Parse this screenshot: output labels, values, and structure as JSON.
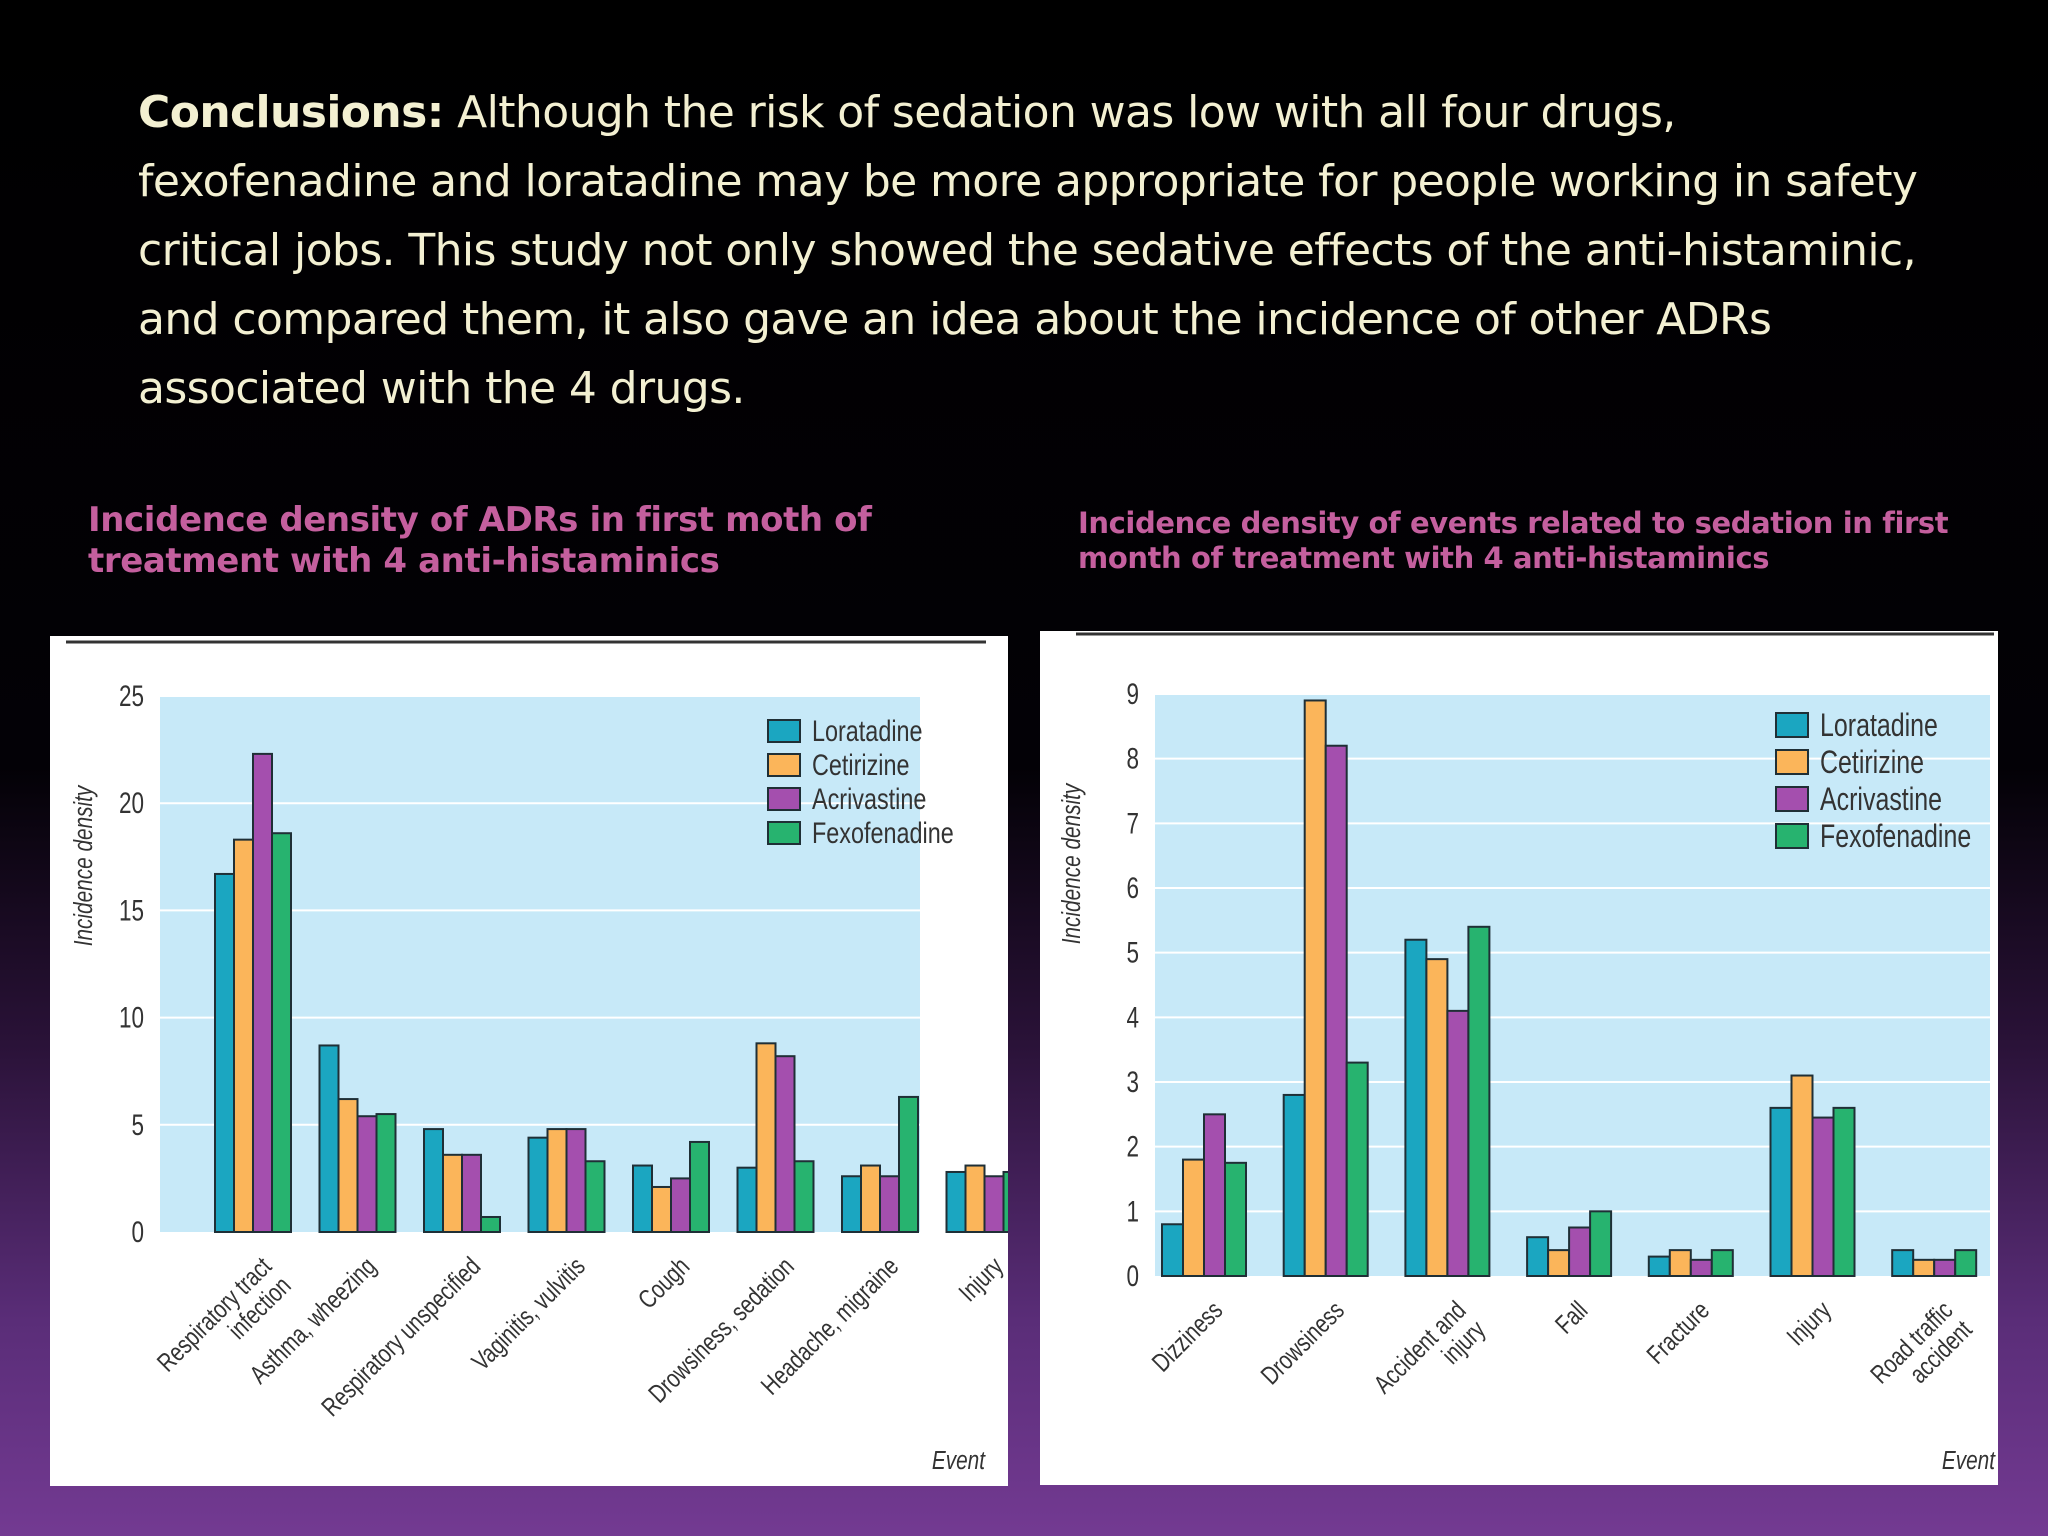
{
  "conclusions": {
    "lead": "Conclusions:",
    "body": " Although the risk of sedation was low with all four drugs, fexofenadine and loratadine may be more appropriate for people working in safety critical jobs. This study not only showed the sedative effects of the anti-histaminic, and compared them, it also gave an idea about the incidence of other ADRs associated with the 4 drugs."
  },
  "captions": {
    "left": "Incidence density of ADRs in first moth of treatment with  4 anti-histaminics",
    "right": "Incidence density of events related to sedation in first month of treatment with 4 anti-histaminics"
  },
  "colors": {
    "plot_bg": "#c7e9f8",
    "grid": "#ffffff",
    "title_color": "#c45f9e",
    "text_color": "#f3f0d2"
  },
  "chart_data": [
    {
      "type": "bar",
      "ylabel": "Incidence density",
      "xlabel": "Event",
      "ylim": [
        0,
        25
      ],
      "yticks": [
        0,
        5,
        10,
        15,
        20,
        25
      ],
      "grid": true,
      "legend_position": "top-right",
      "categories": [
        [
          "Respiratory tract",
          "infection"
        ],
        [
          "Asthma, wheezing"
        ],
        [
          "Respiratory unspecified"
        ],
        [
          "Vaginitis, vulvitis"
        ],
        [
          "Cough"
        ],
        [
          "Drowsiness, sedation"
        ],
        [
          "Headache, migraine"
        ],
        [
          "Injury"
        ]
      ],
      "series": [
        {
          "name": "Loratadine",
          "color": "#1ba6c1",
          "values": [
            16.7,
            8.7,
            4.8,
            4.4,
            3.1,
            3.0,
            2.6,
            2.8
          ]
        },
        {
          "name": "Cetirizine",
          "color": "#fbb55a",
          "values": [
            18.3,
            6.2,
            3.6,
            4.8,
            2.1,
            8.8,
            3.1,
            3.1
          ]
        },
        {
          "name": "Acrivastine",
          "color": "#a44fae",
          "values": [
            22.3,
            5.4,
            3.6,
            4.8,
            2.5,
            8.2,
            2.6,
            2.6
          ]
        },
        {
          "name": "Fexofenadine",
          "color": "#27b36f",
          "values": [
            18.6,
            5.5,
            0.7,
            3.3,
            4.2,
            3.3,
            6.3,
            2.8
          ]
        }
      ]
    },
    {
      "type": "bar",
      "ylabel": "Incidence density",
      "xlabel": "Event",
      "ylim": [
        0,
        9
      ],
      "yticks": [
        0,
        1,
        2,
        3,
        4,
        5,
        6,
        7,
        8,
        9
      ],
      "grid": true,
      "legend_position": "top-right",
      "categories": [
        [
          "Dizziness"
        ],
        [
          "Drowsiness"
        ],
        [
          "Accident and",
          "injury"
        ],
        [
          "Fall"
        ],
        [
          "Fracture"
        ],
        [
          "Injury"
        ],
        [
          "Road traffic",
          "accident"
        ]
      ],
      "series": [
        {
          "name": "Loratadine",
          "color": "#1ba6c1",
          "values": [
            0.8,
            2.8,
            5.2,
            0.6,
            0.3,
            2.6,
            0.4
          ]
        },
        {
          "name": "Cetirizine",
          "color": "#fbb55a",
          "values": [
            1.8,
            8.9,
            4.9,
            0.4,
            0.4,
            3.1,
            0.25
          ]
        },
        {
          "name": "Acrivastine",
          "color": "#a44fae",
          "values": [
            2.5,
            8.2,
            4.1,
            0.75,
            0.25,
            2.45,
            0.25
          ]
        },
        {
          "name": "Fexofenadine",
          "color": "#27b36f",
          "values": [
            1.75,
            3.3,
            5.4,
            1.0,
            0.4,
            2.6,
            0.4
          ]
        }
      ]
    }
  ]
}
